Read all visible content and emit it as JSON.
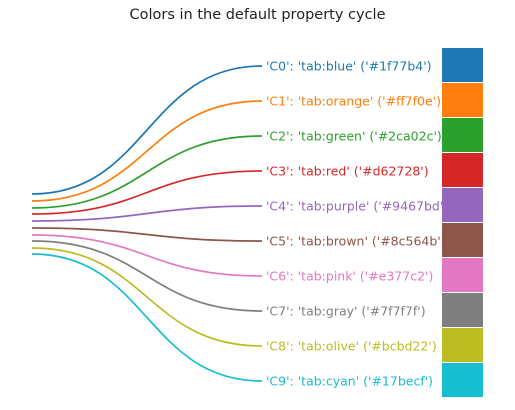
{
  "chart_data": {
    "type": "line",
    "title": "Colors in the default property cycle",
    "series": [
      {
        "label": "'C0': 'tab:blue' ('#1f77b4')",
        "color": "#1f77b4",
        "y_start": 194,
        "y_end": 66
      },
      {
        "label": "'C1': 'tab:orange' ('#ff7f0e')",
        "color": "#ff7f0e",
        "y_start": 201,
        "y_end": 101
      },
      {
        "label": "'C2': 'tab:green' ('#2ca02c')",
        "color": "#2ca02c",
        "y_start": 208,
        "y_end": 136
      },
      {
        "label": "'C3': 'tab:red' ('#d62728')",
        "color": "#d62728",
        "y_start": 214,
        "y_end": 171
      },
      {
        "label": "'C4': 'tab:purple' ('#9467bd')",
        "color": "#9467bd",
        "y_start": 221,
        "y_end": 206
      },
      {
        "label": "'C5': 'tab:brown' ('#8c564b')",
        "color": "#8c564b",
        "y_start": 228,
        "y_end": 241
      },
      {
        "label": "'C6': 'tab:pink' ('#e377c2')",
        "color": "#e377c2",
        "y_start": 235,
        "y_end": 276
      },
      {
        "label": "'C7': 'tab:gray' ('#7f7f7f')",
        "color": "#7f7f7f",
        "y_start": 241,
        "y_end": 311
      },
      {
        "label": "'C8': 'tab:olive' ('#bcbd22')",
        "color": "#bcbd22",
        "y_start": 248,
        "y_end": 346
      },
      {
        "label": "'C9': 'tab:cyan' ('#17becf')",
        "color": "#17becf",
        "y_start": 254,
        "y_end": 381
      }
    ]
  }
}
